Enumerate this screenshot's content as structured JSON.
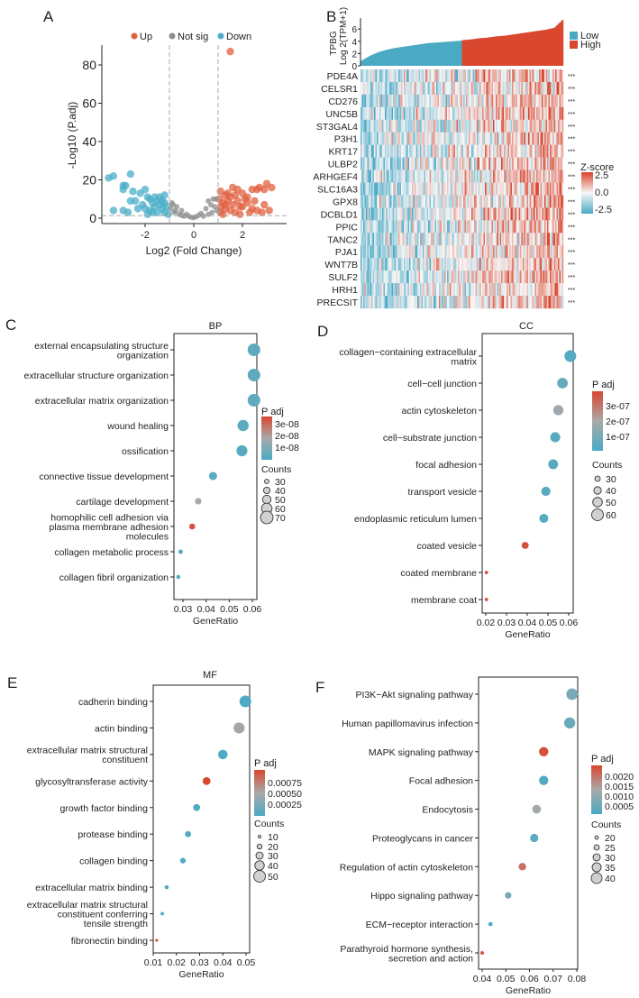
{
  "colors": {
    "up": "#e0603f",
    "not_sig": "#8c8c8c",
    "down": "#4aaec8",
    "low": "#4aaac4",
    "high": "#d9472f",
    "mid": "#a9a9a9",
    "heat_low": "#4aa9c6",
    "heat_mid": "#f7f7f7",
    "heat_high": "#d9432c"
  },
  "panels": {
    "A": "A",
    "B": "B",
    "C": "C",
    "D": "D",
    "E": "E",
    "F": "F"
  },
  "chart_data": [
    {
      "panel": "A",
      "type": "scatter",
      "xlabel": "Log2 (Fold Change)",
      "ylabel": "-Log10 (P.adj)",
      "xticks": [
        -2,
        0,
        2
      ],
      "yticks": [
        0,
        20,
        40,
        60,
        80
      ],
      "xlim": [
        -3.6,
        3.7
      ],
      "ylim": [
        0,
        92
      ],
      "thresholds": {
        "fold_change": [
          -1,
          1
        ],
        "padj": 1.3
      },
      "legend": [
        "Up",
        "Not sig",
        "Down"
      ],
      "series": [
        {
          "name": "Up",
          "points": [
            [
              1.5,
              87
            ],
            [
              1.1,
              14
            ],
            [
              1.3,
              12
            ],
            [
              1.6,
              16
            ],
            [
              1.8,
              15
            ],
            [
              2.0,
              13
            ],
            [
              2.2,
              11
            ],
            [
              2.4,
              15
            ],
            [
              2.6,
              15
            ],
            [
              2.7,
              16
            ],
            [
              3.0,
              18
            ],
            [
              3.2,
              16
            ],
            [
              2.9,
              15
            ],
            [
              1.2,
              8
            ],
            [
              1.4,
              9
            ],
            [
              1.6,
              7
            ],
            [
              1.8,
              9
            ],
            [
              2.0,
              6
            ],
            [
              2.2,
              8
            ],
            [
              2.4,
              5
            ],
            [
              2.6,
              4
            ],
            [
              2.9,
              7
            ],
            [
              3.1,
              4
            ],
            [
              1.1,
              3
            ],
            [
              1.3,
              5
            ],
            [
              1.5,
              4
            ],
            [
              1.7,
              3
            ],
            [
              1.9,
              2
            ],
            [
              1.05,
              10
            ],
            [
              1.4,
              13
            ],
            [
              1.7,
              12
            ],
            [
              2.1,
              10
            ],
            [
              1.2,
              2
            ],
            [
              2.5,
              9
            ],
            [
              2.8,
              3
            ],
            [
              1.3,
              7
            ],
            [
              1.5,
              11
            ],
            [
              1.9,
              6
            ],
            [
              1.1,
              6
            ],
            [
              2.3,
              3
            ]
          ]
        },
        {
          "name": "Not sig",
          "points": [
            [
              -0.9,
              8
            ],
            [
              -0.7,
              6
            ],
            [
              -0.5,
              4
            ],
            [
              -0.3,
              2
            ],
            [
              -0.1,
              0.5
            ],
            [
              0.1,
              0.8
            ],
            [
              0.3,
              2.5
            ],
            [
              0.5,
              5
            ],
            [
              0.7,
              7
            ],
            [
              0.9,
              10
            ],
            [
              0.8,
              10
            ],
            [
              0.6,
              9
            ],
            [
              -0.8,
              3
            ],
            [
              -0.6,
              2
            ],
            [
              0.4,
              1
            ],
            [
              -0.4,
              1
            ],
            [
              0.2,
              1.5
            ],
            [
              -0.2,
              1
            ],
            [
              0.95,
              4
            ],
            [
              -0.95,
              5
            ],
            [
              0.75,
              3
            ],
            [
              -0.85,
              7
            ],
            [
              0.85,
              6
            ],
            [
              -0.75,
              4
            ],
            [
              0.6,
              2
            ],
            [
              -0.5,
              1.5
            ],
            [
              0.0,
              0.3
            ]
          ]
        },
        {
          "name": "Down",
          "points": [
            [
              -3.5,
              21
            ],
            [
              -3.3,
              22
            ],
            [
              -2.6,
              23
            ],
            [
              -2.9,
              17
            ],
            [
              -2.8,
              17
            ],
            [
              -2.9,
              15
            ],
            [
              -2.5,
              14
            ],
            [
              -2.2,
              13
            ],
            [
              -2.0,
              15
            ],
            [
              -1.9,
              11
            ],
            [
              -2.6,
              9
            ],
            [
              -2.4,
              9
            ],
            [
              -3.3,
              4
            ],
            [
              -2.9,
              4
            ],
            [
              -2.7,
              3
            ],
            [
              -2.3,
              5
            ],
            [
              -2.1,
              7
            ],
            [
              -1.8,
              10
            ],
            [
              -1.7,
              8
            ],
            [
              -1.6,
              6
            ],
            [
              -1.5,
              9
            ],
            [
              -1.4,
              7
            ],
            [
              -1.3,
              5
            ],
            [
              -1.2,
              8
            ],
            [
              -1.1,
              6
            ],
            [
              -1.2,
              3
            ],
            [
              -1.5,
              3
            ],
            [
              -1.8,
              4
            ],
            [
              -1.9,
              2
            ],
            [
              -1.4,
              11
            ],
            [
              -1.2,
              12
            ],
            [
              -1.6,
              11
            ],
            [
              -1.7,
              3
            ],
            [
              -1.05,
              2
            ],
            [
              -1.3,
              9
            ],
            [
              -2.0,
              5
            ]
          ]
        }
      ]
    },
    {
      "panel": "B",
      "type": "heatmap",
      "bar": {
        "gene": "TPBG",
        "ylabel": "Log 2(TPM+1)",
        "yticks": [
          0,
          2,
          4,
          6
        ],
        "ylim": [
          0,
          7.6
        ],
        "sorted_profile_low": [
          0.8,
          1.6,
          2.2,
          2.6,
          2.9,
          3.1,
          3.3,
          3.5,
          3.7,
          3.8,
          3.9,
          4.0,
          4.1
        ],
        "sorted_profile_high": [
          4.2,
          4.3,
          4.5,
          4.6,
          4.8,
          4.9,
          5.1,
          5.3,
          5.5,
          5.7,
          5.9,
          6.2,
          7.5
        ]
      },
      "groups": [
        "Low",
        "High"
      ],
      "genes": [
        "PDE4A",
        "CELSR1",
        "CD276",
        "UNC5B",
        "ST3GAL4",
        "P3H1",
        "KRT17",
        "ULBP2",
        "ARHGEF4",
        "SLC16A3",
        "GPX8",
        "DCBLD1",
        "PPIC",
        "TANC2",
        "PJA1",
        "WNT7B",
        "SULF2",
        "HRH1",
        "PRECSIT"
      ],
      "significance": "***",
      "colorbar": {
        "title": "Z-score",
        "ticks": [
          "2.5",
          "0.0",
          "-2.5"
        ],
        "range": [
          -2.5,
          2.5
        ]
      }
    },
    {
      "panel": "C",
      "type": "scatter",
      "title": "BP",
      "xlabel": "GeneRatio",
      "xticks": [
        "0.03",
        "0.04",
        "0.05",
        "0.06"
      ],
      "categories": [
        [
          "external encapsulating structure",
          "organization"
        ],
        [
          "extracellular structure organization"
        ],
        [
          "extracellular matrix organization"
        ],
        [
          "wound healing"
        ],
        [
          "ossification"
        ],
        [
          "connective tissue development"
        ],
        [
          "cartilage development"
        ],
        [
          "homophilic cell adhesion via",
          "plasma membrane adhesion",
          "molecules"
        ],
        [
          "collagen metabolic process"
        ],
        [
          "collagen fibril organization"
        ]
      ],
      "gene_ratio": [
        0.0607,
        0.0607,
        0.0607,
        0.056,
        0.0555,
        0.043,
        0.0366,
        0.034,
        0.029,
        0.028
      ],
      "counts": [
        70,
        70,
        70,
        63,
        62,
        48,
        40,
        37,
        30,
        28
      ],
      "padj": [
        4e-09,
        4e-09,
        4e-09,
        3e-09,
        3e-09,
        3e-09,
        1.8e-08,
        3.4e-08,
        2e-09,
        2e-09
      ],
      "padj_range": [
        0,
        3.6e-08
      ],
      "colorbar_title": "P adj",
      "colorbar_ticks": [
        "3e-08",
        "2e-08",
        "1e-08"
      ],
      "size_title": "Counts",
      "size_ticks": [
        30,
        40,
        50,
        60,
        70
      ]
    },
    {
      "panel": "D",
      "type": "scatter",
      "title": "CC",
      "xlabel": "GeneRatio",
      "xticks": [
        "0.02",
        "0.03",
        "0.04",
        "0.05",
        "0.06"
      ],
      "categories": [
        [
          "collagen−containing extracellular",
          "matrix"
        ],
        [
          "cell−cell junction"
        ],
        [
          "actin cytoskeleton"
        ],
        [
          "cell−substrate junction"
        ],
        [
          "focal adhesion"
        ],
        [
          "transport vesicle"
        ],
        [
          "endoplasmic reticulum lumen"
        ],
        [
          "coated vesicle"
        ],
        [
          "coated membrane"
        ],
        [
          "membrane coat"
        ]
      ],
      "gene_ratio": [
        0.0608,
        0.057,
        0.055,
        0.0535,
        0.0525,
        0.049,
        0.048,
        0.039,
        0.0203,
        0.0203
      ],
      "counts": [
        60,
        55,
        53,
        52,
        51,
        48,
        47,
        38,
        20,
        20
      ],
      "padj": [
        2e-08,
        6e-08,
        1.7e-07,
        3e-08,
        3e-08,
        3e-08,
        2e-08,
        3.6e-07,
        3.7e-07,
        3.7e-07
      ],
      "padj_range": [
        0,
        3.8e-07
      ],
      "colorbar_title": "P adj",
      "colorbar_ticks": [
        "3e-07",
        "2e-07",
        "1e-07"
      ],
      "size_title": "Counts",
      "size_ticks": [
        30,
        40,
        50,
        60
      ]
    },
    {
      "panel": "E",
      "type": "scatter",
      "title": "MF",
      "xlabel": "GeneRatio",
      "xticks": [
        "0.01",
        "0.02",
        "0.03",
        "0.04",
        "0.05"
      ],
      "categories": [
        [
          "cadherin binding"
        ],
        [
          "actin binding"
        ],
        [
          "extracellular matrix structural",
          "constituent"
        ],
        [
          "glycosyltransferase activity"
        ],
        [
          "growth factor binding"
        ],
        [
          "protease binding"
        ],
        [
          "collagen binding"
        ],
        [
          "extracellular matrix binding"
        ],
        [
          "extracellular matrix structural",
          "constituent conferring",
          "tensile strength"
        ],
        [
          "fibronectin binding"
        ]
      ],
      "gene_ratio": [
        0.0497,
        0.047,
        0.04,
        0.033,
        0.0287,
        0.025,
        0.0228,
        0.0158,
        0.0139,
        0.0115
      ],
      "counts": [
        50,
        47,
        40,
        33,
        29,
        25,
        23,
        16,
        14,
        11
      ],
      "padj": [
        2e-05,
        0.0005,
        3e-05,
        0.00095,
        3e-05,
        3e-05,
        3e-05,
        5e-05,
        5e-05,
        0.00085
      ],
      "padj_range": [
        0,
        0.00095
      ],
      "colorbar_title": "P adj",
      "colorbar_ticks": [
        "0.00075",
        "0.00050",
        "0.00025"
      ],
      "size_title": "Counts",
      "size_ticks": [
        10,
        20,
        30,
        40,
        50
      ]
    },
    {
      "panel": "F",
      "type": "scatter",
      "title": "",
      "xlabel": "GeneRatio",
      "xticks": [
        "0.04",
        "0.05",
        "0.06",
        "0.07",
        "0.08"
      ],
      "categories": [
        [
          "PI3K−Akt signaling pathway"
        ],
        [
          "Human papillomavirus infection"
        ],
        [
          "MAPK signaling pathway"
        ],
        [
          "Focal adhesion"
        ],
        [
          "Endocytosis"
        ],
        [
          "Proteoglycans in cancer"
        ],
        [
          "Regulation of actin cytoskeleton"
        ],
        [
          "Hippo signaling pathway"
        ],
        [
          "ECM−receptor interaction"
        ],
        [
          "Parathyroid hormone synthesis,",
          "secretion and action"
        ]
      ],
      "gene_ratio": [
        0.078,
        0.077,
        0.066,
        0.066,
        0.063,
        0.062,
        0.057,
        0.051,
        0.0435,
        0.04
      ],
      "counts": [
        42,
        41,
        36,
        36,
        34,
        33,
        31,
        28,
        22,
        20
      ],
      "padj": [
        0.0006,
        0.0004,
        0.0023,
        0.0001,
        0.0011,
        0.0002,
        0.0019,
        0.0006,
        0.0001,
        0.0022
      ],
      "padj_range": [
        0,
        0.0024
      ],
      "colorbar_title": "P adj",
      "colorbar_ticks": [
        "0.0020",
        "0.0015",
        "0.0010",
        "0.0005"
      ],
      "size_title": "Counts",
      "size_ticks": [
        20,
        25,
        30,
        35,
        40
      ]
    }
  ]
}
